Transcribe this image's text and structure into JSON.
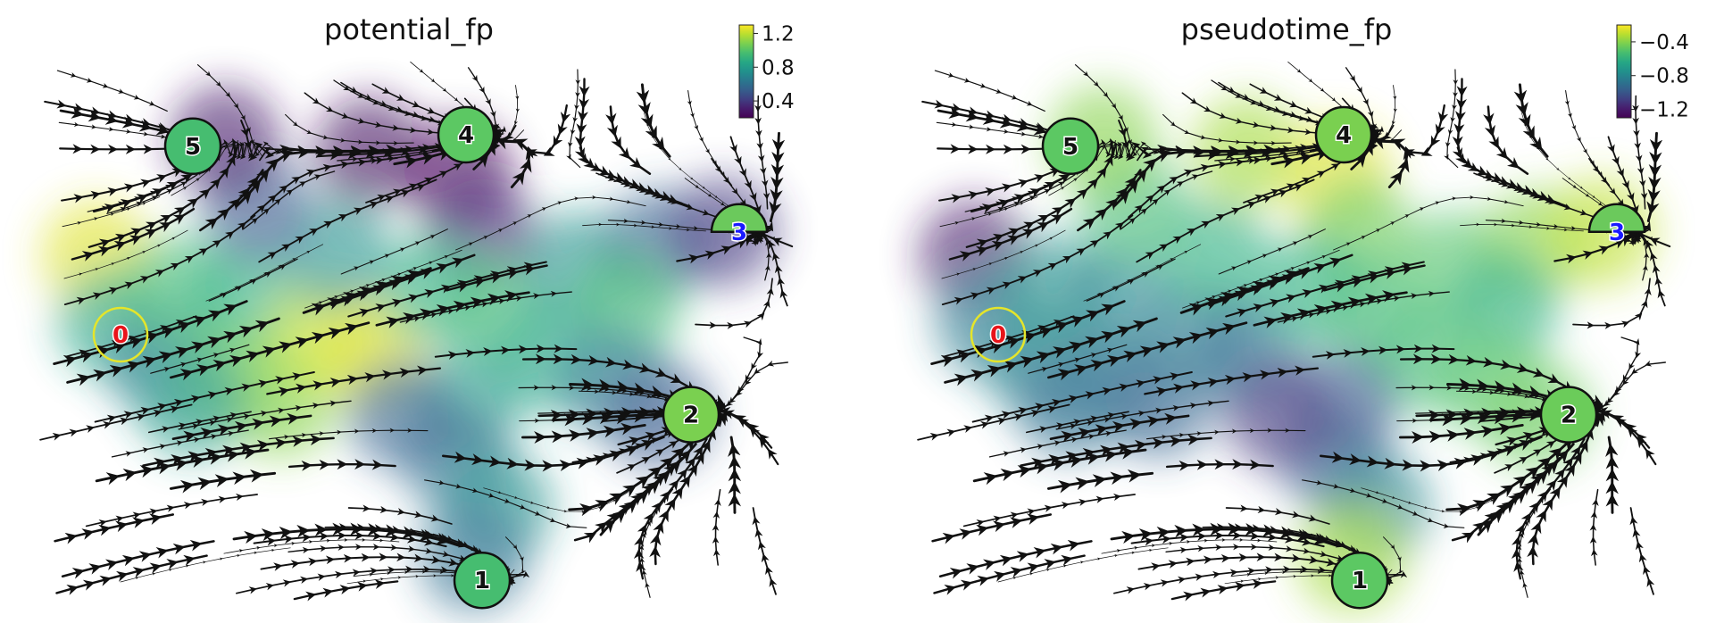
{
  "chart_data": [
    {
      "type": "scatter",
      "title": "potential_fp",
      "colormap": "viridis",
      "colorbar": {
        "ticks": [
          "1.2",
          "0.8",
          "0.4"
        ],
        "tick_values": [
          1.2,
          0.8,
          0.4
        ],
        "range": [
          0.2,
          1.3
        ]
      },
      "grid": false,
      "overlay": "velocity streamlines",
      "nodes": [
        {
          "label": "0",
          "x": 0.13,
          "y": 0.5,
          "color_value": 1.0,
          "marker": "hollow-circle",
          "label_color": "#e8141a"
        },
        {
          "label": "1",
          "x": 0.58,
          "y": 0.93,
          "color_value": 0.9,
          "marker": "circle",
          "label_color": "#111111"
        },
        {
          "label": "2",
          "x": 0.84,
          "y": 0.64,
          "color_value": 1.1,
          "marker": "circle",
          "label_color": "#111111"
        },
        {
          "label": "3",
          "x": 0.9,
          "y": 0.32,
          "color_value": 0.9,
          "marker": "half-circle",
          "label_color": "#1a1aff"
        },
        {
          "label": "4",
          "x": 0.56,
          "y": 0.15,
          "color_value": 1.0,
          "marker": "circle",
          "label_color": "#111111"
        },
        {
          "label": "5",
          "x": 0.22,
          "y": 0.17,
          "color_value": 0.9,
          "marker": "circle",
          "label_color": "#111111"
        }
      ],
      "cells": [
        {
          "x": 0.1,
          "y": 0.36,
          "value": 1.25
        },
        {
          "x": 0.12,
          "y": 0.48,
          "value": 0.85
        },
        {
          "x": 0.18,
          "y": 0.55,
          "value": 0.65
        },
        {
          "x": 0.2,
          "y": 0.42,
          "value": 0.95
        },
        {
          "x": 0.28,
          "y": 0.44,
          "value": 0.9
        },
        {
          "x": 0.27,
          "y": 0.58,
          "value": 1.05
        },
        {
          "x": 0.33,
          "y": 0.62,
          "value": 1.1
        },
        {
          "x": 0.38,
          "y": 0.5,
          "value": 1.2
        },
        {
          "x": 0.44,
          "y": 0.53,
          "value": 1.25
        },
        {
          "x": 0.4,
          "y": 0.36,
          "value": 0.75
        },
        {
          "x": 0.3,
          "y": 0.28,
          "value": 0.5
        },
        {
          "x": 0.26,
          "y": 0.16,
          "value": 0.3
        },
        {
          "x": 0.44,
          "y": 0.18,
          "value": 0.25
        },
        {
          "x": 0.55,
          "y": 0.22,
          "value": 0.22
        },
        {
          "x": 0.58,
          "y": 0.32,
          "value": 0.35
        },
        {
          "x": 0.52,
          "y": 0.42,
          "value": 0.9
        },
        {
          "x": 0.6,
          "y": 0.46,
          "value": 0.95
        },
        {
          "x": 0.7,
          "y": 0.38,
          "value": 0.75
        },
        {
          "x": 0.8,
          "y": 0.34,
          "value": 0.55
        },
        {
          "x": 0.88,
          "y": 0.32,
          "value": 0.4
        },
        {
          "x": 0.76,
          "y": 0.45,
          "value": 0.95
        },
        {
          "x": 0.66,
          "y": 0.54,
          "value": 0.85
        },
        {
          "x": 0.74,
          "y": 0.58,
          "value": 0.65
        },
        {
          "x": 0.8,
          "y": 0.64,
          "value": 0.5
        },
        {
          "x": 0.56,
          "y": 0.62,
          "value": 0.8
        },
        {
          "x": 0.55,
          "y": 0.72,
          "value": 0.6
        },
        {
          "x": 0.6,
          "y": 0.8,
          "value": 0.75
        },
        {
          "x": 0.57,
          "y": 0.89,
          "value": 0.6
        },
        {
          "x": 0.48,
          "y": 0.64,
          "value": 0.55
        },
        {
          "x": 0.22,
          "y": 0.62,
          "value": 0.8
        }
      ]
    },
    {
      "type": "scatter",
      "title": "pseudotime_fp",
      "colormap": "viridis",
      "colorbar": {
        "ticks": [
          "−0.4",
          "−0.8",
          "−1.2"
        ],
        "tick_values": [
          -0.4,
          -0.8,
          -1.2
        ],
        "range": [
          -1.3,
          -0.2
        ]
      },
      "grid": false,
      "overlay": "velocity streamlines",
      "nodes": [
        {
          "label": "0",
          "x": 0.13,
          "y": 0.5,
          "color_value": -0.6,
          "marker": "hollow-circle",
          "label_color": "#e8141a"
        },
        {
          "label": "1",
          "x": 0.58,
          "y": 0.93,
          "color_value": -0.5,
          "marker": "circle",
          "label_color": "#111111"
        },
        {
          "label": "2",
          "x": 0.84,
          "y": 0.64,
          "color_value": -0.45,
          "marker": "circle",
          "label_color": "#111111"
        },
        {
          "label": "3",
          "x": 0.9,
          "y": 0.32,
          "color_value": -0.5,
          "marker": "half-circle",
          "label_color": "#1a1aff"
        },
        {
          "label": "4",
          "x": 0.56,
          "y": 0.15,
          "color_value": -0.4,
          "marker": "circle",
          "label_color": "#111111"
        },
        {
          "label": "5",
          "x": 0.22,
          "y": 0.17,
          "color_value": -0.5,
          "marker": "circle",
          "label_color": "#111111"
        }
      ],
      "cells": [
        {
          "x": 0.1,
          "y": 0.36,
          "value": -1.2
        },
        {
          "x": 0.12,
          "y": 0.48,
          "value": -0.85
        },
        {
          "x": 0.18,
          "y": 0.55,
          "value": -0.8
        },
        {
          "x": 0.2,
          "y": 0.42,
          "value": -0.75
        },
        {
          "x": 0.28,
          "y": 0.44,
          "value": -0.8
        },
        {
          "x": 0.27,
          "y": 0.58,
          "value": -0.85
        },
        {
          "x": 0.33,
          "y": 0.62,
          "value": -0.95
        },
        {
          "x": 0.38,
          "y": 0.5,
          "value": -0.85
        },
        {
          "x": 0.44,
          "y": 0.53,
          "value": -0.9
        },
        {
          "x": 0.4,
          "y": 0.36,
          "value": -0.6
        },
        {
          "x": 0.3,
          "y": 0.28,
          "value": -0.55
        },
        {
          "x": 0.26,
          "y": 0.16,
          "value": -0.4
        },
        {
          "x": 0.44,
          "y": 0.18,
          "value": -0.35
        },
        {
          "x": 0.55,
          "y": 0.22,
          "value": -0.25
        },
        {
          "x": 0.58,
          "y": 0.32,
          "value": -0.45
        },
        {
          "x": 0.52,
          "y": 0.42,
          "value": -0.6
        },
        {
          "x": 0.6,
          "y": 0.46,
          "value": -0.55
        },
        {
          "x": 0.7,
          "y": 0.38,
          "value": -0.5
        },
        {
          "x": 0.8,
          "y": 0.34,
          "value": -0.4
        },
        {
          "x": 0.88,
          "y": 0.32,
          "value": -0.3
        },
        {
          "x": 0.76,
          "y": 0.45,
          "value": -0.6
        },
        {
          "x": 0.66,
          "y": 0.54,
          "value": -0.55
        },
        {
          "x": 0.74,
          "y": 0.58,
          "value": -0.5
        },
        {
          "x": 0.8,
          "y": 0.64,
          "value": -0.45
        },
        {
          "x": 0.56,
          "y": 0.62,
          "value": -1.0
        },
        {
          "x": 0.55,
          "y": 0.72,
          "value": -1.0
        },
        {
          "x": 0.6,
          "y": 0.8,
          "value": -0.8
        },
        {
          "x": 0.57,
          "y": 0.89,
          "value": -0.35
        },
        {
          "x": 0.48,
          "y": 0.64,
          "value": -1.1
        },
        {
          "x": 0.22,
          "y": 0.62,
          "value": -0.9
        }
      ]
    }
  ]
}
